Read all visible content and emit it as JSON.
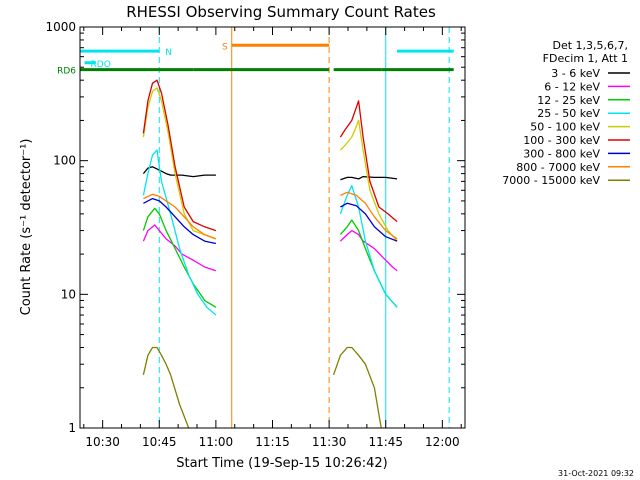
{
  "chart_data": {
    "type": "line",
    "title": "RHESSI Observing Summary Count Rates",
    "xlabel": "Start Time (19-Sep-15 10:26:42)",
    "ylabel": "Count Rate (s⁻¹ detector⁻¹)",
    "yscale": "log",
    "ylim": [
      1,
      1000
    ],
    "xlim": [
      10.4,
      12.1
    ],
    "x_ticks": [
      {
        "value": 10.5,
        "label": "10:30"
      },
      {
        "value": 10.75,
        "label": "10:45"
      },
      {
        "value": 11.0,
        "label": "11:00"
      },
      {
        "value": 11.25,
        "label": "11:15"
      },
      {
        "value": 11.5,
        "label": "11:30"
      },
      {
        "value": 11.75,
        "label": "11:45"
      },
      {
        "value": 12.0,
        "label": "12:00"
      }
    ],
    "y_ticks": [
      {
        "value": 1,
        "label": "1"
      },
      {
        "value": 10,
        "label": "10"
      },
      {
        "value": 100,
        "label": "100"
      },
      {
        "value": 1000,
        "label": "1000"
      }
    ],
    "legend_header": [
      "Det 1,3,5,6,7,",
      "FDecim 1, Att 1"
    ],
    "timestamp": "31-Oct-2021 09:32",
    "flag_bars": [
      {
        "label": "N",
        "color": "#00e5ee",
        "y_level": 660,
        "segments": [
          [
            10.4,
            10.75
          ],
          [
            11.8,
            12.05
          ]
        ]
      },
      {
        "label": "S",
        "color": "#ff8000",
        "y_level": 730,
        "segments": [
          [
            11.07,
            11.5
          ]
        ]
      },
      {
        "label": "RDO",
        "color": "#00e5ee",
        "y_level": 540,
        "segments": [
          [
            10.42,
            10.47
          ]
        ]
      },
      {
        "label": "RD6",
        "color": "#008000",
        "y_level": 480,
        "segments": [
          [
            10.4,
            10.9
          ],
          [
            10.9,
            11.5
          ],
          [
            11.52,
            11.73
          ],
          [
            11.73,
            12.05
          ]
        ]
      }
    ],
    "vlines": [
      {
        "x": 11.07,
        "color": "#ff8000",
        "dash": false
      },
      {
        "x": 11.5,
        "color": "#ff8000",
        "dash": true
      },
      {
        "x": 10.75,
        "color": "#00e5ee",
        "dash": true
      },
      {
        "x": 11.75,
        "color": "#00e5ee",
        "dash": false
      },
      {
        "x": 12.03,
        "color": "#00e5ee",
        "dash": true
      }
    ],
    "series": [
      {
        "name": "3 - 6 keV",
        "color": "#000000",
        "segments": [
          {
            "x": [
              10.68,
              10.7,
              10.72,
              10.75,
              10.78,
              10.8,
              10.85,
              10.9,
              10.95,
              10.98,
              11.0
            ],
            "y": [
              80,
              88,
              90,
              85,
              80,
              78,
              78,
              76,
              78,
              78,
              78
            ]
          },
          {
            "x": [
              11.55,
              11.58,
              11.6,
              11.63,
              11.65,
              11.7,
              11.75,
              11.8
            ],
            "y": [
              72,
              75,
              75,
              73,
              76,
              75,
              75,
              73
            ]
          }
        ]
      },
      {
        "name": "6 - 12 keV",
        "color": "#ff00ff",
        "segments": [
          {
            "x": [
              10.68,
              10.7,
              10.73,
              10.75,
              10.78,
              10.82,
              10.85,
              10.9,
              10.95,
              11.0
            ],
            "y": [
              25,
              30,
              33,
              30,
              26,
              23,
              20,
              18,
              16,
              15
            ]
          },
          {
            "x": [
              11.55,
              11.58,
              11.6,
              11.63,
              11.65,
              11.7,
              11.75,
              11.78,
              11.8
            ],
            "y": [
              25,
              28,
              30,
              28,
              25,
              22,
              18,
              16,
              15
            ]
          }
        ]
      },
      {
        "name": "12 - 25 keV",
        "color": "#00cc00",
        "segments": [
          {
            "x": [
              10.68,
              10.7,
              10.73,
              10.75,
              10.78,
              10.82,
              10.86,
              10.9,
              10.95,
              11.0
            ],
            "y": [
              30,
              38,
              44,
              40,
              30,
              22,
              16,
              12,
              9,
              8
            ]
          },
          {
            "x": [
              11.55,
              11.58,
              11.6,
              11.63,
              11.66,
              11.7,
              11.75,
              11.8
            ],
            "y": [
              28,
              32,
              36,
              30,
              22,
              15,
              10,
              8
            ]
          }
        ]
      },
      {
        "name": "25 - 50 keV",
        "color": "#00e5ee",
        "segments": [
          {
            "x": [
              10.68,
              10.7,
              10.72,
              10.74,
              10.76,
              10.8,
              10.84,
              10.88,
              10.92,
              10.96,
              11.0
            ],
            "y": [
              55,
              80,
              110,
              120,
              70,
              40,
              22,
              14,
              10,
              8,
              7
            ]
          },
          {
            "x": [
              11.55,
              11.58,
              11.6,
              11.63,
              11.66,
              11.7,
              11.75,
              11.8
            ],
            "y": [
              40,
              55,
              65,
              45,
              25,
              15,
              10,
              8
            ]
          }
        ]
      },
      {
        "name": "50 - 100 keV",
        "color": "#cccc00",
        "segments": [
          {
            "x": [
              10.68,
              10.7,
              10.72,
              10.74,
              10.76,
              10.79,
              10.82,
              10.86,
              10.9,
              10.95,
              11.0
            ],
            "y": [
              150,
              250,
              330,
              350,
              280,
              160,
              80,
              40,
              30,
              28,
              26
            ]
          },
          {
            "x": [
              11.55,
              11.57,
              11.6,
              11.62,
              11.63,
              11.65,
              11.68,
              11.72,
              11.76,
              11.8
            ],
            "y": [
              120,
              130,
              150,
              180,
              200,
              120,
              60,
              40,
              30,
              25
            ]
          }
        ]
      },
      {
        "name": "100 - 300 keV",
        "color": "#dd0000",
        "segments": [
          {
            "x": [
              10.68,
              10.7,
              10.72,
              10.74,
              10.76,
              10.79,
              10.82,
              10.86,
              10.9,
              10.95,
              11.0
            ],
            "y": [
              160,
              280,
              380,
              400,
              320,
              180,
              90,
              45,
              35,
              32,
              30
            ]
          },
          {
            "x": [
              11.55,
              11.57,
              11.6,
              11.62,
              11.63,
              11.65,
              11.68,
              11.72,
              11.76,
              11.8
            ],
            "y": [
              150,
              170,
              200,
              250,
              280,
              150,
              70,
              45,
              40,
              35
            ]
          }
        ]
      },
      {
        "name": "300 - 800 keV",
        "color": "#0000cc",
        "segments": [
          {
            "x": [
              10.68,
              10.72,
              10.75,
              10.78,
              10.82,
              10.86,
              10.9,
              10.95,
              11.0
            ],
            "y": [
              48,
              52,
              50,
              45,
              38,
              32,
              28,
              25,
              24
            ]
          },
          {
            "x": [
              11.55,
              11.58,
              11.62,
              11.66,
              11.7,
              11.75,
              11.8
            ],
            "y": [
              45,
              48,
              46,
              40,
              32,
              27,
              25
            ]
          }
        ]
      },
      {
        "name": "800 - 7000 keV",
        "color": "#ff8000",
        "segments": [
          {
            "x": [
              10.68,
              10.72,
              10.75,
              10.78,
              10.82,
              10.86,
              10.9,
              10.95,
              11.0
            ],
            "y": [
              52,
              56,
              54,
              50,
              45,
              38,
              32,
              28,
              26
            ]
          },
          {
            "x": [
              11.55,
              11.58,
              11.62,
              11.66,
              11.7,
              11.75,
              11.8
            ],
            "y": [
              55,
              58,
              55,
              48,
              38,
              30,
              26
            ]
          }
        ]
      },
      {
        "name": "7000 - 15000 keV",
        "color": "#808000",
        "segments": [
          {
            "x": [
              10.68,
              10.7,
              10.72,
              10.74,
              10.76,
              10.78,
              10.8,
              10.84,
              10.88
            ],
            "y": [
              2.5,
              3.5,
              4.0,
              4.0,
              3.5,
              3.0,
              2.5,
              1.5,
              1.0
            ]
          },
          {
            "x": [
              11.52,
              11.55,
              11.58,
              11.6,
              11.63,
              11.66,
              11.7,
              11.73
            ],
            "y": [
              2.5,
              3.5,
              4.0,
              4.0,
              3.5,
              3.0,
              2.0,
              1.0
            ]
          }
        ]
      }
    ]
  }
}
